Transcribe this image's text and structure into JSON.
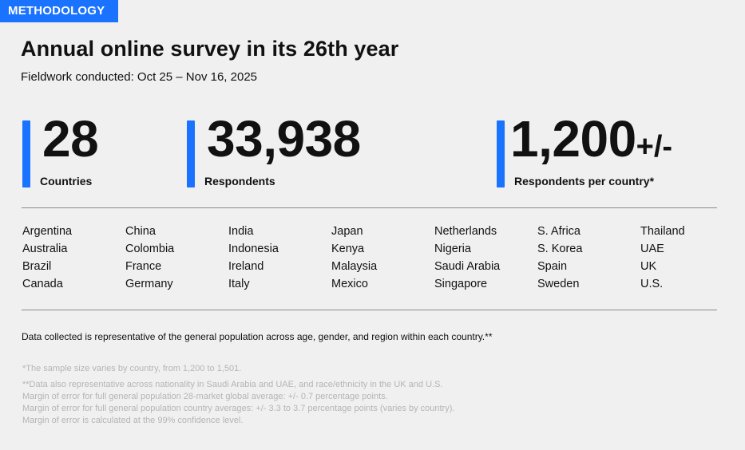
{
  "tag": "METHODOLOGY",
  "title": "Annual online survey in its 26th year",
  "subtitle": "Fieldwork conducted: Oct 25 – Nov 16, 2025",
  "colors": {
    "accent": "#1a73ff",
    "background": "#f0f0f0",
    "footnote": "#b5b5b5"
  },
  "stats": [
    {
      "value": "28",
      "suffix": "",
      "label": "Countries"
    },
    {
      "value": "33,938",
      "suffix": "",
      "label": "Respondents"
    },
    {
      "value": "1,200",
      "suffix": "+/-",
      "label": "Respondents per country*"
    }
  ],
  "countries": [
    [
      "Argentina",
      "Australia",
      "Brazil",
      "Canada"
    ],
    [
      "China",
      "Colombia",
      "France",
      "Germany"
    ],
    [
      "India",
      "Indonesia",
      "Ireland",
      "Italy"
    ],
    [
      "Japan",
      "Kenya",
      "Malaysia",
      "Mexico"
    ],
    [
      "Netherlands",
      "Nigeria",
      "Saudi Arabia",
      "Singapore"
    ],
    [
      "S. Africa",
      "S. Korea",
      "Spain",
      "Sweden"
    ],
    [
      "Thailand",
      "UAE",
      "UK",
      "U.S."
    ]
  ],
  "note": "Data collected is representative of the general population across age, gender, and region within each country.**",
  "footnotes": {
    "sample": "*The sample size varies by country, from 1,200 to 1,501.",
    "lines": [
      "**Data also representative across nationality in Saudi Arabia and UAE, and race/ethnicity in the UK and U.S.",
      "Margin of error for full general population 28-market global average: +/- 0.7 percentage points.",
      "Margin of error for full general population country averages: +/- 3.3 to 3.7 percentage points (varies by country).",
      "Margin of error is calculated at the 99% confidence level."
    ]
  }
}
